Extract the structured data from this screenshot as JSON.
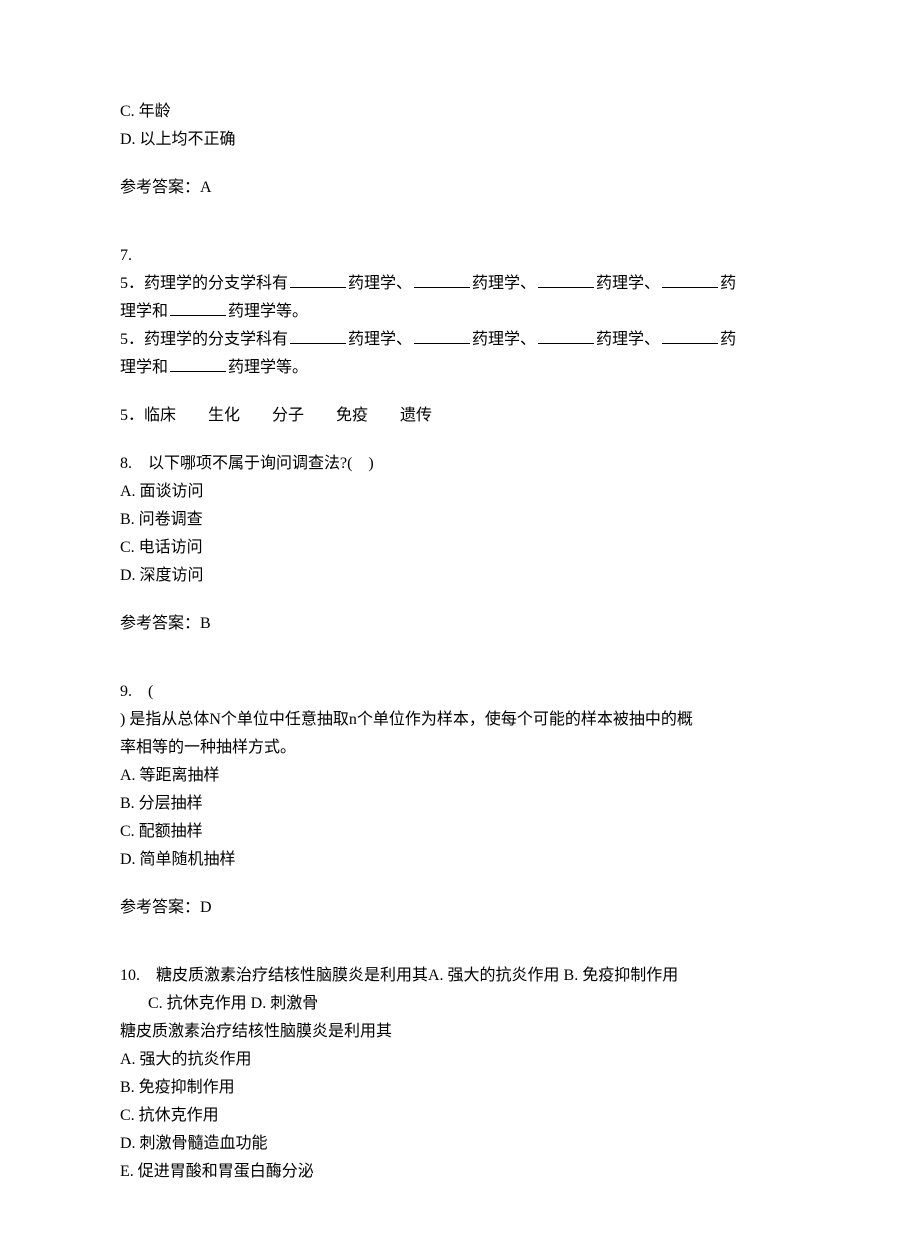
{
  "q6_partial": {
    "option_c": "C. 年龄",
    "option_d": "D. 以上均不正确",
    "answer_label": "参考答案：A"
  },
  "q7": {
    "number": "7.",
    "line1_a": "5．药理学的分支学科有",
    "line1_b": "药理学、",
    "line1_c": "药理学、",
    "line1_d": "药理学、",
    "line1_e": "药",
    "line2_a": "理学和",
    "line2_b": "药理学等。",
    "line3_a": "5．药理学的分支学科有",
    "line3_b": "药理学、",
    "line3_c": "药理学、",
    "line3_d": "药理学、",
    "line3_e": "药",
    "line4_a": "理学和",
    "line4_b": "药理学等。",
    "answers_line": "5．临床　　生化　　分子　　免疫　　遗传"
  },
  "q8": {
    "stem": "8.　以下哪项不属于询问调查法?(　)",
    "option_a": "A. 面谈访问",
    "option_b": "B. 问卷调查",
    "option_c": "C. 电话访问",
    "option_d": "D. 深度访问",
    "answer_label": "参考答案：B"
  },
  "q9": {
    "line1": "9.　(",
    "line2": ") 是指从总体N个单位中任意抽取n个单位作为样本，使每个可能的样本被抽中的概",
    "line3": "率相等的一种抽样方式。",
    "option_a": "A. 等距离抽样",
    "option_b": "B. 分层抽样",
    "option_c": "C. 配额抽样",
    "option_d": "D. 简单随机抽样",
    "answer_label": "参考答案：D"
  },
  "q10": {
    "line1": "10.　糖皮质激素治疗结核性脑膜炎是利用其A. 强大的抗炎作用  B. 免疫抑制作用",
    "line2": "C. 抗休克作用  D. 刺激骨",
    "line3": "糖皮质激素治疗结核性脑膜炎是利用其",
    "option_a": "A. 强大的抗炎作用",
    "option_b": "B. 免疫抑制作用",
    "option_c": "C. 抗休克作用",
    "option_d": "D. 刺激骨髓造血功能",
    "option_e": "E. 促进胃酸和胃蛋白酶分泌"
  }
}
